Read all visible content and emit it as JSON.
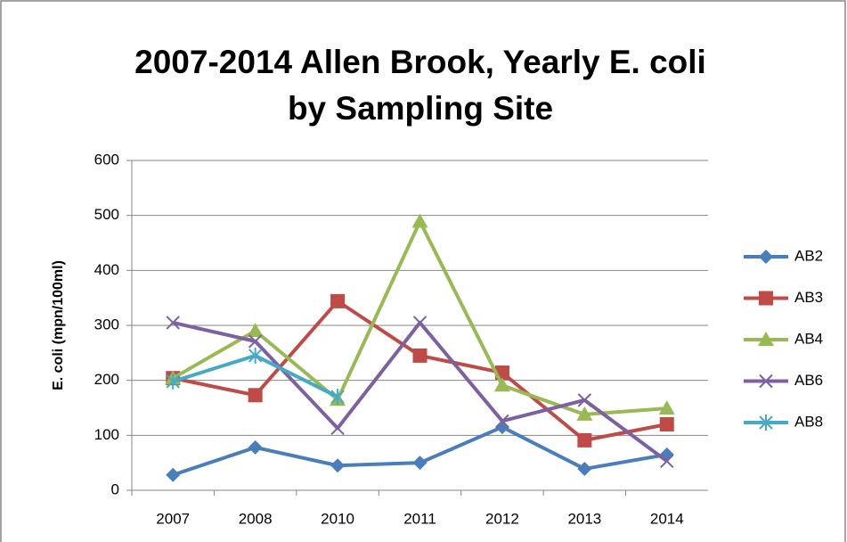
{
  "chart_data": {
    "type": "line",
    "title": [
      "2007-2014 Allen Brook, Yearly E. coli",
      "by Sampling Site"
    ],
    "y_label": "E. coli (mpn/100ml)",
    "categories": [
      "2007",
      "2008",
      "2010",
      "2011",
      "2012",
      "2013",
      "2014"
    ],
    "series": [
      {
        "name": "AB2",
        "color": "#4a7ebb",
        "marker": "diamond",
        "values": [
          28,
          78,
          45,
          50,
          115,
          39,
          65
        ]
      },
      {
        "name": "AB3",
        "color": "#be4b48",
        "marker": "square",
        "values": [
          204,
          173,
          344,
          245,
          214,
          91,
          120
        ]
      },
      {
        "name": "AB4",
        "color": "#98b954",
        "marker": "triangle",
        "values": [
          204,
          290,
          165,
          489,
          191,
          138,
          149
        ]
      },
      {
        "name": "AB6",
        "color": "#7d60a0",
        "marker": "x",
        "values": [
          305,
          271,
          113,
          305,
          126,
          164,
          53
        ]
      },
      {
        "name": "AB8",
        "color": "#46aac5",
        "marker": "star",
        "values": [
          198,
          245,
          170,
          null,
          null,
          null,
          null
        ]
      }
    ],
    "ylim": [
      0,
      600
    ],
    "yticks": [
      0,
      100,
      200,
      300,
      400,
      500,
      600
    ],
    "grid": true,
    "legend": "right"
  }
}
